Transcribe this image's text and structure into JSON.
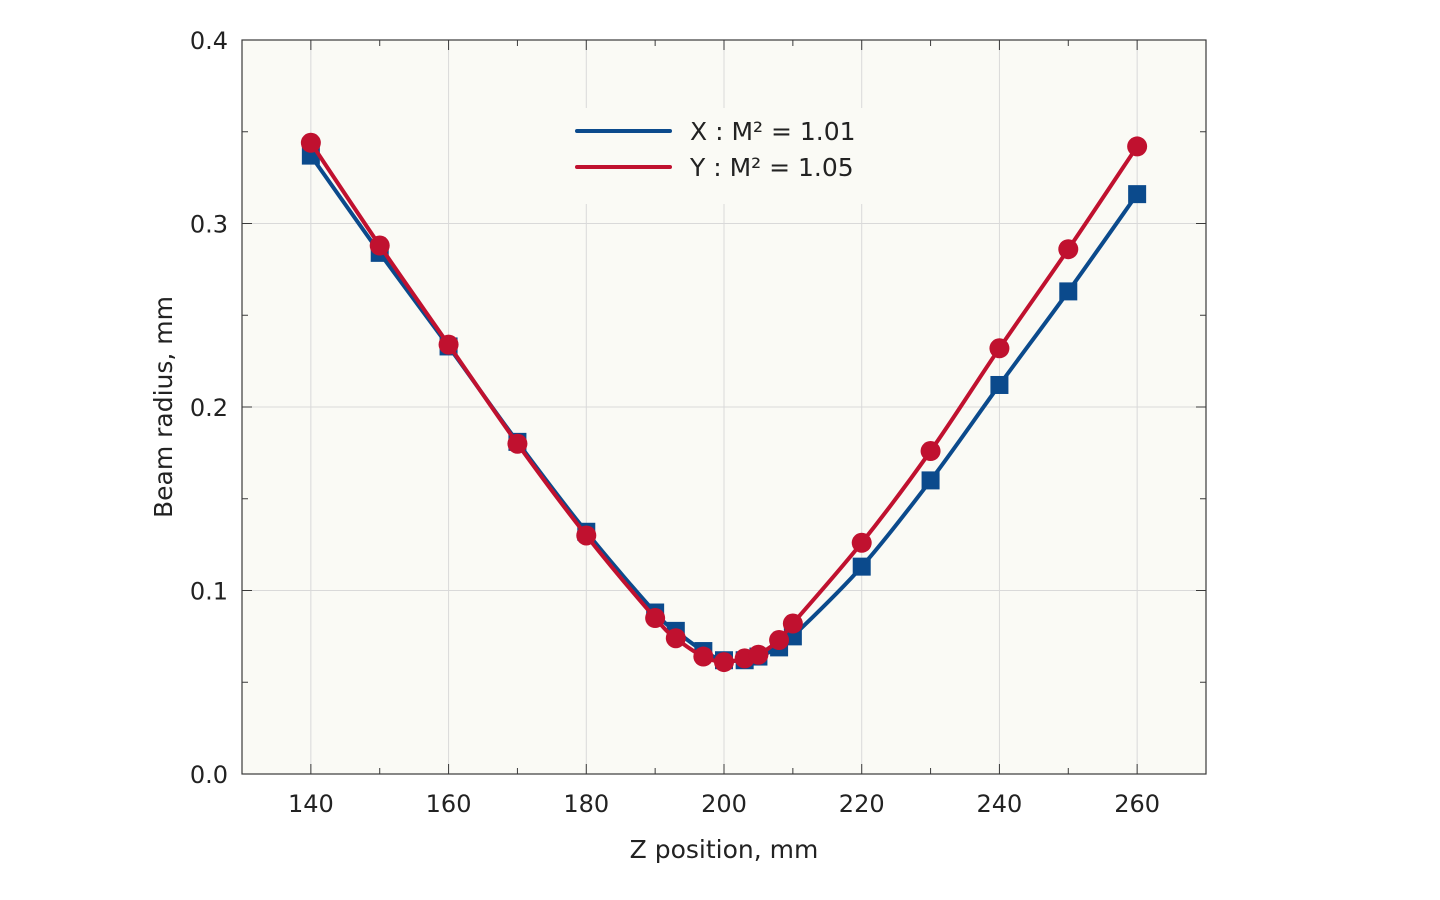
{
  "chart_data": {
    "type": "line",
    "xlabel": "Z position, mm",
    "ylabel": "Beam radius, mm",
    "xlim": [
      130,
      270
    ],
    "ylim": [
      0,
      0.4
    ],
    "xticks": [
      140,
      160,
      180,
      200,
      220,
      240,
      260
    ],
    "xtick_labels": [
      "140",
      "160",
      "180",
      "200",
      "220",
      "240",
      "260"
    ],
    "yticks": [
      0,
      0.1,
      0.2,
      0.3,
      0.4
    ],
    "ytick_labels": [
      "0.0",
      "0.1",
      "0.2",
      "0.3",
      "0.4"
    ],
    "grid": true,
    "legend_position": "top-center",
    "plot_background": "#fafaf5",
    "series": [
      {
        "name": "X : M² = 1.01",
        "color": "#0b4a8c",
        "marker": "square",
        "x": [
          140,
          150,
          160,
          170,
          180,
          190,
          193,
          197,
          200,
          203,
          205,
          208,
          210,
          220,
          230,
          240,
          250,
          260
        ],
        "y": [
          0.337,
          0.284,
          0.233,
          0.181,
          0.132,
          0.088,
          0.078,
          0.067,
          0.062,
          0.062,
          0.064,
          0.069,
          0.075,
          0.113,
          0.16,
          0.212,
          0.263,
          0.316
        ]
      },
      {
        "name": "Y : M² = 1.05",
        "color": "#c0112f",
        "marker": "circle",
        "x": [
          140,
          150,
          160,
          170,
          180,
          190,
          193,
          197,
          200,
          203,
          205,
          208,
          210,
          220,
          230,
          240,
          250,
          260
        ],
        "y": [
          0.344,
          0.288,
          0.234,
          0.18,
          0.13,
          0.085,
          0.074,
          0.064,
          0.061,
          0.063,
          0.065,
          0.073,
          0.082,
          0.126,
          0.176,
          0.232,
          0.286,
          0.342
        ]
      }
    ]
  }
}
